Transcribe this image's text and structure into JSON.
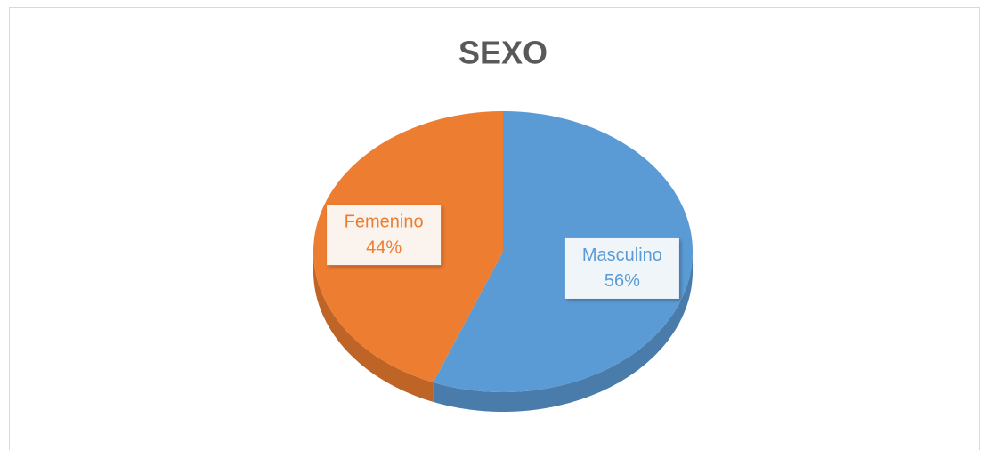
{
  "chart_data": {
    "type": "pie",
    "title": "SEXO",
    "categories": [
      "Masculino",
      "Femenino"
    ],
    "values": [
      56,
      44
    ],
    "value_labels": [
      "56%",
      "44%"
    ],
    "colors": [
      "#5b9bd5",
      "#ed7d31"
    ],
    "three_d": true
  }
}
